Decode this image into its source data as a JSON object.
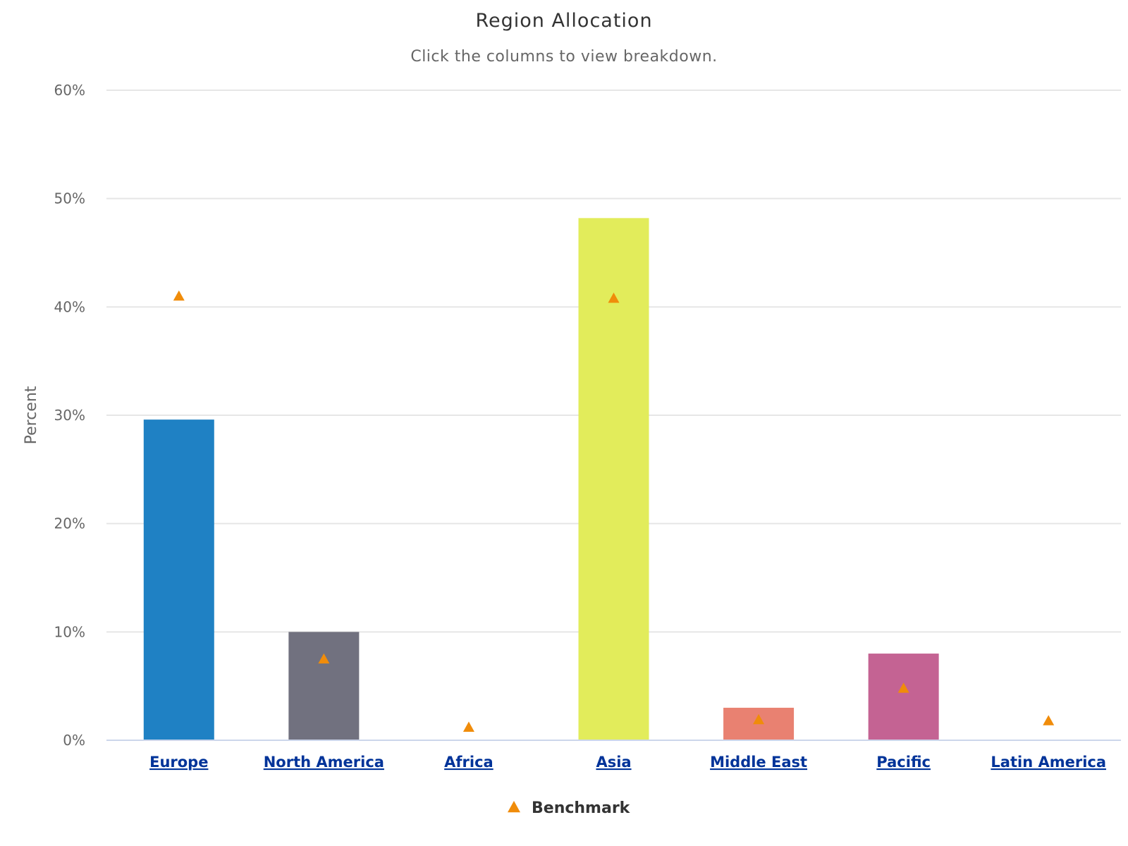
{
  "chart_data": {
    "type": "bar",
    "title": "Region Allocation",
    "subtitle": "Click the columns to view breakdown.",
    "ylabel": "Percent",
    "xlabel": "",
    "ylim": [
      0,
      60
    ],
    "y_ticks": [
      0,
      10,
      20,
      30,
      40,
      50,
      60
    ],
    "y_tick_format": "{v}%",
    "grid": true,
    "categories": [
      "Europe",
      "North America",
      "Africa",
      "Asia",
      "Middle East",
      "Pacific",
      "Latin America"
    ],
    "series": [
      {
        "type": "bar",
        "values": [
          29.6,
          10.0,
          0,
          48.2,
          3.0,
          8.0,
          0
        ],
        "colors": [
          "#1f81c4",
          "#71717f",
          "#e2ec5b",
          "#e2ec5b",
          "#e98171",
          "#c46393",
          "#c46393"
        ]
      },
      {
        "name": "Benchmark",
        "type": "scatter",
        "marker": "triangle",
        "color": "#f08c0a",
        "values": [
          41.0,
          7.5,
          1.2,
          40.8,
          1.9,
          4.8,
          1.8
        ]
      }
    ],
    "legend": {
      "position": "bottom-center",
      "items": [
        "Benchmark"
      ]
    }
  }
}
